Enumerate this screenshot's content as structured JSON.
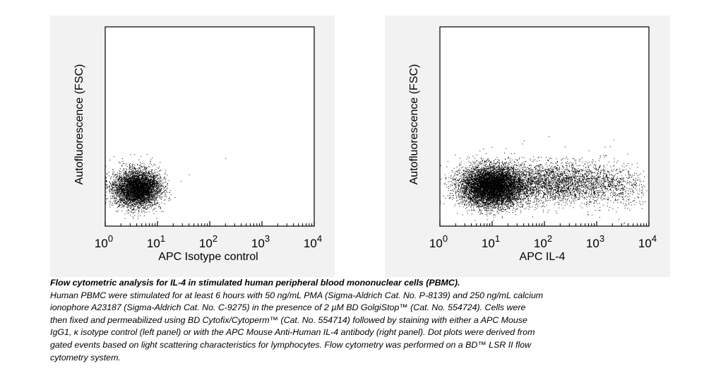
{
  "chart_data": [
    {
      "type": "scatter",
      "plot_style": "flow cytometry dot plot",
      "xscale": "log",
      "xlim": [
        1,
        10000
      ],
      "xticks": [
        1,
        10,
        100,
        1000,
        10000
      ],
      "xtick_labels": [
        {
          "base": "10",
          "exp": "0"
        },
        {
          "base": "10",
          "exp": "1"
        },
        {
          "base": "10",
          "exp": "2"
        },
        {
          "base": "10",
          "exp": "3"
        },
        {
          "base": "10",
          "exp": "4"
        }
      ],
      "xlabel": "APC Isotype control",
      "ylabel": "Autofluorescence (FSC)",
      "clusters": [
        {
          "center_x": 4,
          "spread_decades_x": 0.22,
          "center_y": 0.19,
          "spread_y": 0.045,
          "count": 9000
        }
      ],
      "outlier_points": [
        [
          40,
          0.26
        ],
        [
          10,
          0.12
        ],
        [
          200,
          0.34
        ],
        [
          8,
          0.08
        ]
      ]
    },
    {
      "type": "scatter",
      "plot_style": "flow cytometry dot plot",
      "xscale": "log",
      "xlim": [
        1,
        10000
      ],
      "xticks": [
        1,
        10,
        100,
        1000,
        10000
      ],
      "xtick_labels": [
        {
          "base": "10",
          "exp": "0"
        },
        {
          "base": "10",
          "exp": "1"
        },
        {
          "base": "10",
          "exp": "2"
        },
        {
          "base": "10",
          "exp": "3"
        },
        {
          "base": "10",
          "exp": "4"
        }
      ],
      "xlabel": "APC IL-4",
      "ylabel": "Autofluorescence (FSC)",
      "clusters": [
        {
          "center_x": 10,
          "spread_decades_x": 0.3,
          "center_y": 0.2,
          "spread_y": 0.05,
          "count": 9000
        },
        {
          "center_x": 150,
          "spread_decades_x": 0.6,
          "center_y": 0.22,
          "spread_y": 0.05,
          "count": 2800
        },
        {
          "center_x": 2000,
          "spread_decades_x": 0.35,
          "center_y": 0.2,
          "spread_y": 0.06,
          "count": 500
        }
      ],
      "outlier_points": [
        [
          120,
          0.45
        ],
        [
          700,
          0.38
        ],
        [
          1800,
          0.4
        ],
        [
          40,
          0.43
        ]
      ]
    }
  ],
  "caption": {
    "title": "Flow cytometric analysis for IL-4 in stimulated human peripheral blood mononuclear cells (PBMC).",
    "lines": [
      "Human PBMC were stimulated for at least 6 hours with 50 ng/mL PMA (Sigma-Aldrich Cat. No. P-8139) and 250 ng/mL calcium",
      "ionophore A23187 (Sigma-Aldrich Cat. No. C-9275) in the presence of 2 µM BD GolgiStop™ (Cat. No. 554724).  Cells were",
      "then fixed and permeabilized using BD Cytofix/Cytoperm™ (Cat. No. 554714) followed by staining with either a APC Mouse",
      "IgG1, κ isotype control (left panel) or with the APC Mouse Anti-Human IL-4 antibody (right panel).  Dot plots were derived from",
      "gated events based on light scattering characteristics for lymphocytes.  Flow cytometry was performed on a BD™ LSR II flow",
      "cytometry system."
    ]
  },
  "colors": {
    "panel_bg": "#f2f2f2",
    "plot_bg": "#ffffff",
    "ink": "#000000"
  }
}
